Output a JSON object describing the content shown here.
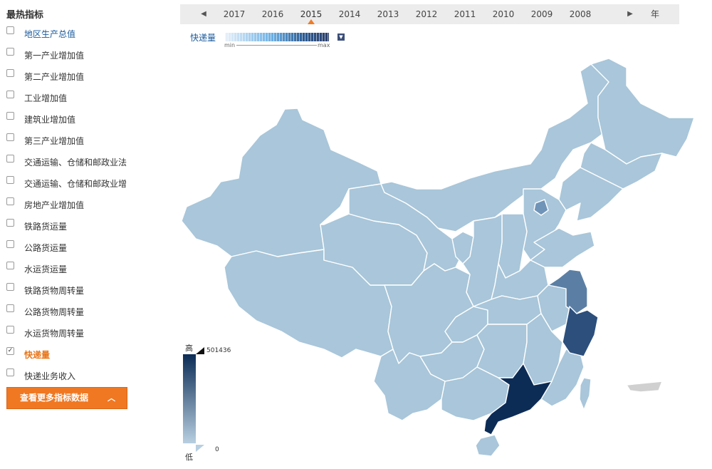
{
  "sidebar": {
    "title": "最热指标",
    "items": [
      {
        "label": "地区生产总值",
        "checked": false,
        "style": "link"
      },
      {
        "label": "第一产业增加值",
        "checked": false,
        "style": "normal"
      },
      {
        "label": "第二产业增加值",
        "checked": false,
        "style": "normal"
      },
      {
        "label": "工业增加值",
        "checked": false,
        "style": "normal"
      },
      {
        "label": "建筑业增加值",
        "checked": false,
        "style": "normal"
      },
      {
        "label": "第三产业增加值",
        "checked": false,
        "style": "normal"
      },
      {
        "label": "交通运输、仓储和邮政业法",
        "checked": false,
        "style": "normal"
      },
      {
        "label": "交通运输、仓储和邮政业增",
        "checked": false,
        "style": "normal"
      },
      {
        "label": "房地产业增加值",
        "checked": false,
        "style": "normal"
      },
      {
        "label": "铁路货运量",
        "checked": false,
        "style": "normal"
      },
      {
        "label": "公路货运量",
        "checked": false,
        "style": "normal"
      },
      {
        "label": "水运货运量",
        "checked": false,
        "style": "normal"
      },
      {
        "label": "铁路货物周转量",
        "checked": false,
        "style": "normal"
      },
      {
        "label": "公路货物周转量",
        "checked": false,
        "style": "normal"
      },
      {
        "label": "水运货物周转量",
        "checked": false,
        "style": "normal"
      },
      {
        "label": "快递量",
        "checked": true,
        "style": "active"
      },
      {
        "label": "快递业务收入",
        "checked": false,
        "style": "normal"
      }
    ],
    "more_button_label": "查看更多指标数据",
    "more_button_icon": "chevron-up-icon"
  },
  "timeline": {
    "years": [
      "2017",
      "2016",
      "2015",
      "2014",
      "2013",
      "2012",
      "2011",
      "2010",
      "2009",
      "2008"
    ],
    "selected": "2015",
    "unit": "年",
    "prev_icon": "triangle-left-icon",
    "next_icon": "triangle-right-icon"
  },
  "metric": {
    "label": "快递量",
    "scale_min": "min",
    "scale_max": "max",
    "dropdown_icon": "triangle-down-icon"
  },
  "legend": {
    "high_label": "高",
    "low_label": "低",
    "max_value": "501436",
    "min_value": "0"
  },
  "colors": {
    "accent_orange": "#f07822",
    "link_blue": "#1a5a9c",
    "map_base": "#a9c6da",
    "map_max": "#0c2c56",
    "map_high": "#2c4f7c",
    "map_mid": "#5f84aa"
  }
}
